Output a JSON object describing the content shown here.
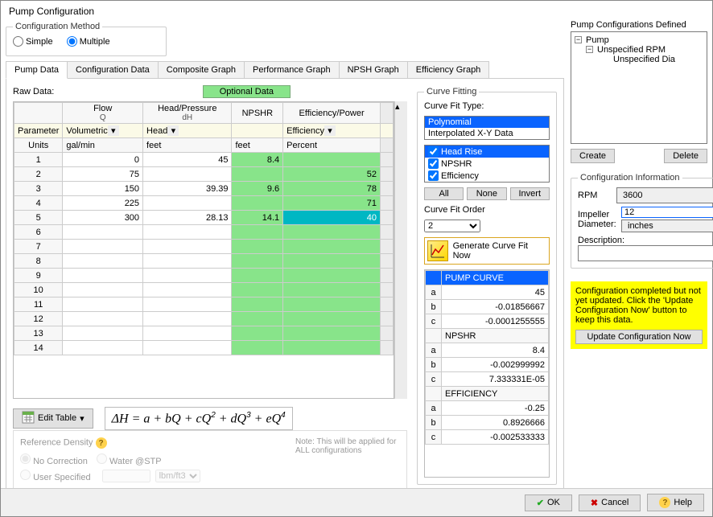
{
  "window_title": "Pump Configuration",
  "config_method": {
    "legend": "Configuration Method",
    "simple": "Simple",
    "multiple": "Multiple",
    "selected": "multiple"
  },
  "tabs": [
    "Pump Data",
    "Configuration Data",
    "Composite Graph",
    "Performance Graph",
    "NPSH Graph",
    "Efficiency Graph"
  ],
  "active_tab": 0,
  "raw_data_label": "Raw Data:",
  "optional_chip": "Optional Data",
  "columns": {
    "flow": {
      "head": "Flow",
      "sub": "Q"
    },
    "head": {
      "head": "Head/Pressure",
      "sub": "dH"
    },
    "npshr": {
      "head": "NPSHR",
      "sub": ""
    },
    "eff": {
      "head": "Efficiency/Power",
      "sub": ""
    }
  },
  "param_row_label": "Parameter",
  "units_row_label": "Units",
  "params": {
    "flow": "Volumetric",
    "head": "Head",
    "eff": "Efficiency"
  },
  "units": {
    "flow": "gal/min",
    "head": "feet",
    "npshr": "feet",
    "eff": "Percent"
  },
  "rows": [
    {
      "n": "1",
      "q": "0",
      "h": "45",
      "npshr": "8.4",
      "eff": ""
    },
    {
      "n": "2",
      "q": "75",
      "h": "",
      "npshr": "",
      "eff": "52"
    },
    {
      "n": "3",
      "q": "150",
      "h": "39.39",
      "npshr": "9.6",
      "eff": "78"
    },
    {
      "n": "4",
      "q": "225",
      "h": "",
      "npshr": "",
      "eff": "71"
    },
    {
      "n": "5",
      "q": "300",
      "h": "28.13",
      "npshr": "14.1",
      "eff": "40",
      "eff_selected": true
    },
    {
      "n": "6"
    },
    {
      "n": "7"
    },
    {
      "n": "8"
    },
    {
      "n": "9"
    },
    {
      "n": "10"
    },
    {
      "n": "11"
    },
    {
      "n": "12"
    },
    {
      "n": "13"
    },
    {
      "n": "14"
    }
  ],
  "edit_table_label": "Edit Table",
  "formula_html": "ΔH = a + bQ + cQ² + dQ³ + eQ⁴",
  "ref_density": {
    "legend": "Reference Density",
    "none": "No Correction",
    "water": "Water @STP",
    "user": "User Specified",
    "unit": "lbm/ft3",
    "note": "Note: This will be applied for ALL configurations"
  },
  "curve_fitting": {
    "legend": "Curve Fitting",
    "type_label": "Curve Fit Type:",
    "types": [
      "Polynomial",
      "Interpolated X-Y Data"
    ],
    "type_selected": 0,
    "series": [
      "Head Rise",
      "NPSHR",
      "Efficiency"
    ],
    "series_selected": 0,
    "btn_all": "All",
    "btn_none": "None",
    "btn_invert": "Invert",
    "order_label": "Curve Fit Order",
    "order_value": "2",
    "generate": "Generate Curve Fit Now"
  },
  "coeffs": {
    "sections": [
      {
        "title": "PUMP CURVE",
        "rows": [
          [
            "a",
            "45"
          ],
          [
            "b",
            "-0.01856667"
          ],
          [
            "c",
            "-0.0001255555"
          ]
        ]
      },
      {
        "title": "NPSHR",
        "rows": [
          [
            "a",
            "8.4"
          ],
          [
            "b",
            "-0.002999992"
          ],
          [
            "c",
            "7.333331E-05"
          ]
        ]
      },
      {
        "title": "EFFICIENCY",
        "rows": [
          [
            "a",
            "-0.25"
          ],
          [
            "b",
            "0.8926666"
          ],
          [
            "c",
            "-0.002533333"
          ]
        ]
      }
    ]
  },
  "tree": {
    "legend": "Pump Configurations Defined",
    "root": "Pump",
    "child": "Unspecified RPM",
    "leaf": "Unspecified Dia"
  },
  "create_label": "Create",
  "delete_label": "Delete",
  "conf_info": {
    "legend": "Configuration Information",
    "rpm_label": "RPM",
    "rpm_value": "3600",
    "impeller_label": "Impeller Diameter:",
    "impeller_value": "12",
    "impeller_unit": "inches",
    "desc_label": "Description:",
    "desc_value": ""
  },
  "warning": "Configuration completed but not yet updated. Click the 'Update Configuration Now' button to keep this data.",
  "update_btn": "Update Configuration Now",
  "footer": {
    "ok": "OK",
    "cancel": "Cancel",
    "help": "Help"
  }
}
